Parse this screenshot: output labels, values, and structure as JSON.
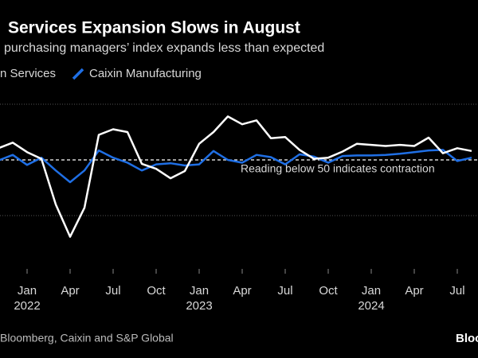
{
  "chart_data": {
    "type": "line",
    "title": "Services Expansion Slows in August",
    "subtitle": "purchasing managers’ index expands less than expected",
    "categories": [
      null,
      null,
      "Jan",
      null,
      null,
      "Apr",
      null,
      null,
      "Jul",
      null,
      null,
      "Oct",
      null,
      null,
      "Jan",
      null,
      null,
      "Apr",
      null,
      null,
      "Jul",
      null,
      null,
      "Oct",
      null,
      null,
      "Jan",
      null,
      null,
      "Apr",
      null,
      null,
      "Jul",
      null
    ],
    "years": [
      "2022",
      "2023",
      "2024"
    ],
    "series": [
      {
        "name": "n Services",
        "color": "#ffffff",
        "values": [
          52.1,
          53.1,
          51.4,
          50.2,
          42.0,
          36.2,
          41.4,
          54.5,
          55.5,
          55.0,
          49.3,
          48.4,
          46.7,
          48.0,
          52.9,
          55.0,
          57.8,
          56.4,
          57.1,
          53.9,
          54.1,
          51.8,
          50.2,
          50.4,
          51.5,
          52.9,
          52.7,
          52.5,
          52.7,
          52.5,
          54.0,
          51.2,
          52.1,
          51.6
        ]
      },
      {
        "name": "Caixin Manufacturing",
        "color": "#1f6fe5",
        "values": [
          49.9,
          50.9,
          49.1,
          50.4,
          48.1,
          46.0,
          48.1,
          51.7,
          50.4,
          49.5,
          48.1,
          49.2,
          49.4,
          49.0,
          49.2,
          51.6,
          50.0,
          49.5,
          50.9,
          50.5,
          49.2,
          51.0,
          50.6,
          49.5,
          50.7,
          50.8,
          50.8,
          50.9,
          51.1,
          51.4,
          51.7,
          51.8,
          49.8,
          50.4
        ]
      }
    ],
    "ylim": [
      35,
      65
    ],
    "grid_lines": [
      40,
      60
    ],
    "threshold": 50,
    "annotation": "Reading below 50 indicates contraction",
    "source": "Bloomberg, Caixin and S&P Global",
    "logo": "Bloo"
  }
}
